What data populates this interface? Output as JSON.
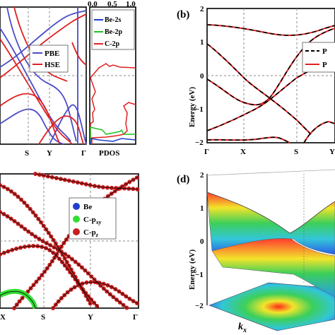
{
  "panels": {
    "a": {
      "legend": [
        "PBE",
        "HSE"
      ],
      "x_ticks": [
        "S",
        "Y",
        "Γ"
      ],
      "pdos_label": "PDOS",
      "pdos_top_ticks": [
        "0.0",
        "0.5",
        "1.0"
      ],
      "pdos_legend": [
        "Be-2s",
        "Be-2p",
        "C-2p"
      ]
    },
    "b": {
      "tag": "(b)",
      "ylabel": "Energy (eV)",
      "y_ticks": [
        "2",
        "1",
        "0",
        "−1",
        "−2"
      ],
      "x_ticks": [
        "Γ",
        "X",
        "S",
        "Y"
      ],
      "legend": [
        "P",
        "P"
      ]
    },
    "c": {
      "x_ticks": [
        "X",
        "S",
        "Y",
        "Γ"
      ],
      "legend": [
        "Be",
        "C-p",
        "C-p"
      ],
      "legend_sub": [
        "xy",
        "z"
      ]
    },
    "d": {
      "tag": "(d)",
      "ylabel": "Energy (eV)",
      "z_ticks": [
        "2",
        "1",
        "0",
        "−1",
        "−2"
      ],
      "xlabel": "k",
      "xlabel_sub": "x"
    }
  },
  "colors": {
    "pbe": "#4b4bc8",
    "hse": "#e02020",
    "be2s": "#1f3fd0",
    "be2p": "#22c022",
    "c2p": "#e02020",
    "dashed": "#000000",
    "be_dot": "#1f3fd0",
    "cpxy_dot": "#33dd33",
    "cpz_dot": "#c81e1e"
  }
}
